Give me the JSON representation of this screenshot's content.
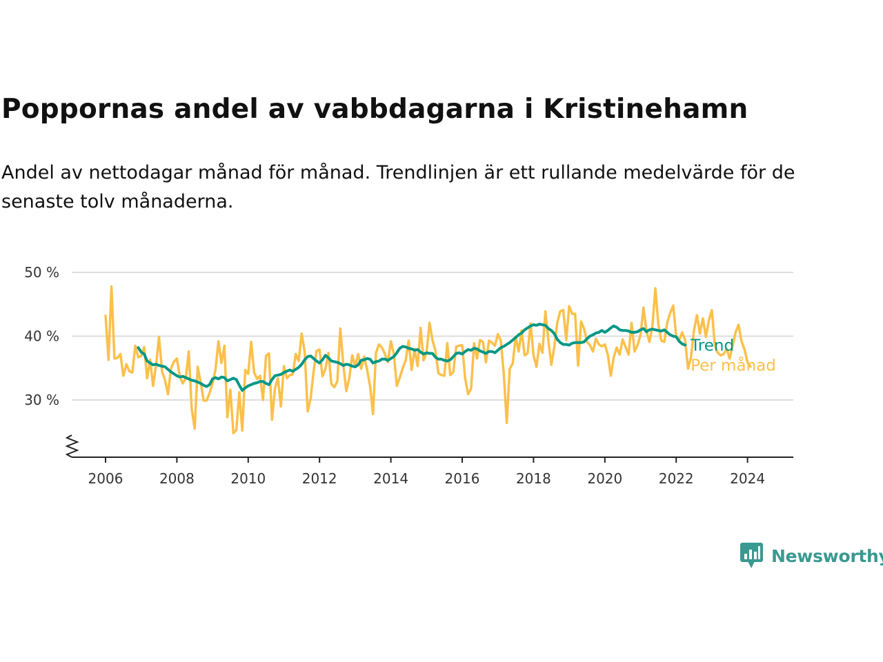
{
  "title": "Poppornas andel av vabbdagarna i Kristinehamn",
  "subtitle": "Andel av nettodagar månad för månad. Trendlinjen är ett rullande medelvärde för de senaste tolv månaderna.",
  "brand": {
    "name": "Newsworthy",
    "icon": "newsworthy-logo-icon",
    "color": "#3a9990"
  },
  "colors": {
    "monthly": "#fbc04b",
    "trend": "#009785",
    "grid": "#dddddd",
    "axis": "#222222"
  },
  "chart_data": {
    "type": "line",
    "x_unit": "year (decimal)",
    "y_unit": "%",
    "xlim": [
      2006,
      2024.4
    ],
    "ylim": [
      22,
      50
    ],
    "y_axis_broken": true,
    "grid": "horizontal",
    "legend": "inline labels at line ends (right)",
    "x_ticks": [
      "2006",
      "2008",
      "2010",
      "2012",
      "2014",
      "2016",
      "2018",
      "2020",
      "2022",
      "2024"
    ],
    "y_ticks": [
      {
        "value": 30,
        "label": "30 %"
      },
      {
        "value": 40,
        "label": "40 %"
      },
      {
        "value": 50,
        "label": "50 %"
      }
    ],
    "series": [
      {
        "name": "Per månad",
        "color": "#fbc04b",
        "x_start": 2006.0,
        "x_step": 0.08333,
        "values": [
          43.2,
          36.3,
          47.8,
          36.5,
          36.6,
          37.2,
          33.8,
          35.6,
          34.5,
          34.3,
          38.5,
          36.7,
          36.9,
          38.3,
          33.4,
          36.3,
          32.2,
          35.4,
          39.9,
          34.5,
          33.1,
          30.9,
          34.9,
          36.0,
          36.5,
          33.7,
          32.6,
          33.4,
          37.6,
          28.6,
          25.5,
          35.2,
          32.8,
          29.9,
          29.9,
          31.1,
          32.6,
          34.8,
          39.2,
          35.8,
          38.5,
          27.3,
          31.6,
          24.8,
          25.3,
          31.2,
          25.2,
          34.7,
          34.1,
          39.1,
          34.3,
          33.3,
          33.8,
          30.0,
          36.9,
          37.3,
          26.9,
          31.8,
          33.4,
          29.0,
          35.3,
          33.4,
          33.9,
          34.0,
          37.2,
          36.1,
          40.4,
          37.6,
          28.2,
          30.2,
          34.5,
          37.7,
          37.9,
          33.7,
          34.9,
          37.4,
          32.5,
          32.0,
          32.9,
          41.2,
          35.5,
          31.4,
          33.4,
          37.0,
          35.3,
          37.2,
          34.9,
          36.8,
          34.8,
          32.2,
          27.8,
          37.4,
          38.7,
          38.2,
          37.2,
          35.9,
          39.2,
          37.2,
          32.2,
          33.5,
          35.0,
          36.2,
          39.3,
          34.7,
          38.0,
          35.3,
          41.3,
          36.2,
          37.4,
          42.1,
          39.4,
          37.7,
          34.2,
          33.9,
          33.8,
          38.9,
          33.9,
          34.4,
          38.4,
          38.5,
          38.6,
          33.4,
          30.9,
          31.8,
          38.9,
          36.5,
          39.4,
          39.1,
          35.9,
          39.3,
          39.0,
          38.5,
          40.3,
          39.3,
          34.1,
          26.4,
          34.9,
          35.7,
          39.9,
          37.6,
          40.9,
          37.0,
          37.3,
          42.0,
          37.0,
          35.2,
          38.8,
          37.4,
          43.9,
          39.4,
          35.5,
          38.3,
          42.1,
          43.9,
          44.1,
          39.4,
          44.7,
          43.5,
          43.5,
          35.4,
          42.3,
          41.2,
          39.1,
          38.6,
          37.6,
          39.6,
          38.7,
          38.4,
          38.7,
          37.1,
          33.8,
          36.7,
          38.2,
          37.1,
          39.5,
          38.3,
          37.1,
          42.1,
          37.6,
          38.6,
          40.2,
          44.5,
          40.8,
          39.1,
          41.5,
          47.5,
          41.9,
          39.3,
          39.1,
          42.1,
          43.7,
          44.8,
          40.0,
          39.3,
          40.6,
          39.4,
          34.9,
          36.7,
          40.9,
          43.3,
          40.4,
          42.8,
          39.9,
          42.5,
          44.1,
          38.6,
          37.4,
          37.0,
          37.2,
          38.0,
          36.5,
          38.5,
          40.6,
          41.8,
          39.2,
          37.9,
          35.9,
          35.2
        ]
      },
      {
        "name": "Trend",
        "color": "#009785",
        "x_start": 2006.9167,
        "x_step": 0.08333,
        "values": [
          38.2,
          37.5,
          37.2,
          36.1,
          35.8,
          35.5,
          35.6,
          35.4,
          35.3,
          35.2,
          34.8,
          34.4,
          34.1,
          33.8,
          33.6,
          33.7,
          33.5,
          33.3,
          33.1,
          33.0,
          32.8,
          32.6,
          32.3,
          32.1,
          32.4,
          33.3,
          33.5,
          33.3,
          33.6,
          33.5,
          33.0,
          33.2,
          33.4,
          33.2,
          32.3,
          31.5,
          31.9,
          32.2,
          32.4,
          32.6,
          32.7,
          32.9,
          32.9,
          32.6,
          32.4,
          33.2,
          33.8,
          33.9,
          34.0,
          34.3,
          34.5,
          34.7,
          34.5,
          34.8,
          35.1,
          35.6,
          36.3,
          36.8,
          36.9,
          36.5,
          36.1,
          35.8,
          36.3,
          37.0,
          36.6,
          36.1,
          36.0,
          35.9,
          35.7,
          35.4,
          35.6,
          35.5,
          35.3,
          35.2,
          35.5,
          36.2,
          36.3,
          36.5,
          36.4,
          35.8,
          36.0,
          36.1,
          36.4,
          36.4,
          36.2,
          36.5,
          36.8,
          37.4,
          38.1,
          38.4,
          38.3,
          38.1,
          38.0,
          37.8,
          37.9,
          37.5,
          37.2,
          37.4,
          37.3,
          37.3,
          36.7,
          36.4,
          36.4,
          36.2,
          36.1,
          36.3,
          36.8,
          37.3,
          37.4,
          37.2,
          37.6,
          37.9,
          37.8,
          38.1,
          38.0,
          37.7,
          37.5,
          37.3,
          37.6,
          37.6,
          37.4,
          37.8,
          38.2,
          38.4,
          38.7,
          39.0,
          39.4,
          39.8,
          40.2,
          40.5,
          41.0,
          41.3,
          41.6,
          41.8,
          41.7,
          41.9,
          41.8,
          41.7,
          41.2,
          40.9,
          40.4,
          39.5,
          39.0,
          38.7,
          38.7,
          38.6,
          38.9,
          39.0,
          39.0,
          39.0,
          39.1,
          39.6,
          40.0,
          40.2,
          40.5,
          40.6,
          40.9,
          40.6,
          40.9,
          41.3,
          41.6,
          41.4,
          41.0,
          40.9,
          40.9,
          40.8,
          40.6,
          40.6,
          40.7,
          41.0,
          41.2,
          40.7,
          41.0,
          41.1,
          41.0,
          40.9,
          40.8,
          41.0,
          40.6,
          40.2,
          40.0,
          39.9,
          39.2,
          38.8,
          38.6
        ]
      }
    ]
  }
}
